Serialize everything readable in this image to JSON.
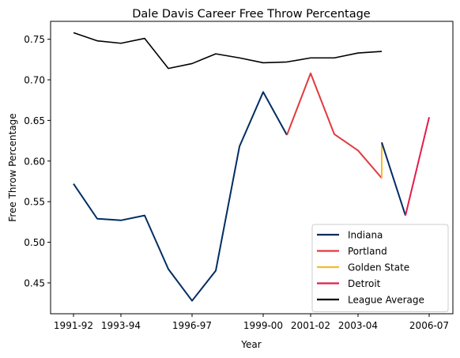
{
  "chart_data": {
    "type": "line",
    "title": "Dale Davis  Career Free Throw Percentage",
    "xlabel": "Year",
    "ylabel": "Free Throw Percentage",
    "x_tick_labels": [
      "1991-92",
      "1993-94",
      "1996-97",
      "1999-00",
      "2001-02",
      "2003-04",
      "2006-07"
    ],
    "y_tick_labels": [
      "0.45",
      "0.50",
      "0.55",
      "0.60",
      "0.65",
      "0.70",
      "0.75"
    ],
    "y_ticks": [
      0.45,
      0.5,
      0.55,
      0.6,
      0.65,
      0.7,
      0.75
    ],
    "ylim": [
      0.412,
      0.772
    ],
    "grid": false,
    "legend_position": "lower-right",
    "seasons": [
      "1991-92",
      "1992-93",
      "1993-94",
      "1994-95",
      "1995-96",
      "1996-97",
      "1997-98",
      "1998-99",
      "1999-00",
      "2000-01",
      "2001-02",
      "2002-03",
      "2003-04",
      "2004-05",
      "2005-06",
      "2006-07"
    ],
    "series": [
      {
        "name": "Indiana",
        "color": "#002D62",
        "width": 2,
        "points": [
          [
            "1991-92",
            0.572
          ],
          [
            "1992-93",
            0.529
          ],
          [
            "1993-94",
            0.527
          ],
          [
            "1994-95",
            0.533
          ],
          [
            "1995-96",
            0.467
          ],
          [
            "1996-97",
            0.428
          ],
          [
            "1997-98",
            0.465
          ],
          [
            "1998-99",
            0.618
          ],
          [
            "1999-00",
            0.685
          ],
          [
            "2000-01",
            0.632
          ]
        ]
      },
      {
        "name": "Portland",
        "color": "#E03A3E",
        "width": 2,
        "points": [
          [
            "2000-01",
            0.632
          ],
          [
            "2001-02",
            0.708
          ],
          [
            "2002-03",
            0.633
          ],
          [
            "2003-04",
            0.613
          ],
          [
            "2004-05",
            0.579
          ]
        ]
      },
      {
        "name": "Golden State",
        "color": "#FDB927",
        "width": 2,
        "points": [
          [
            "2004-05",
            0.579
          ],
          [
            "2004-05",
            0.623
          ]
        ]
      },
      {
        "name": "Indiana",
        "color": "#002D62",
        "width": 2,
        "in_legend": false,
        "points": [
          [
            "2004-05",
            0.623
          ],
          [
            "2005-06",
            0.533
          ]
        ]
      },
      {
        "name": "Detroit",
        "color": "#E01E4B",
        "width": 2,
        "points": [
          [
            "2005-06",
            0.533
          ],
          [
            "2006-07",
            0.654
          ]
        ]
      },
      {
        "name": "League Average",
        "color": "#000000",
        "width": 1.6,
        "points": [
          [
            "1991-92",
            0.758
          ],
          [
            "1992-93",
            0.748
          ],
          [
            "1993-94",
            0.745
          ],
          [
            "1994-95",
            0.751
          ],
          [
            "1995-96",
            0.714
          ],
          [
            "1996-97",
            0.72
          ],
          [
            "1997-98",
            0.732
          ],
          [
            "1998-99",
            0.727
          ],
          [
            "1999-00",
            0.721
          ],
          [
            "2000-01",
            0.722
          ],
          [
            "2001-02",
            0.727
          ],
          [
            "2002-03",
            0.727
          ],
          [
            "2003-04",
            0.733
          ],
          [
            "2004-05",
            0.735
          ]
        ]
      }
    ],
    "legend": [
      {
        "label": "Indiana",
        "color": "#002D62"
      },
      {
        "label": "Portland",
        "color": "#E03A3E"
      },
      {
        "label": "Golden State",
        "color": "#FDB927"
      },
      {
        "label": "Detroit",
        "color": "#E01E4B"
      },
      {
        "label": "League Average",
        "color": "#000000"
      }
    ]
  }
}
